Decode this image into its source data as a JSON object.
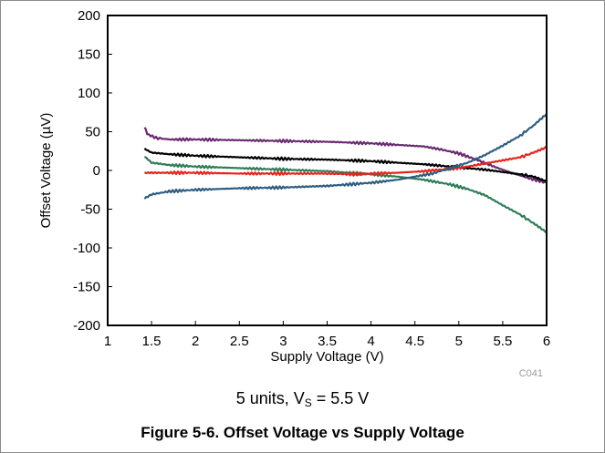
{
  "chart_data": {
    "type": "line",
    "title": "",
    "xlabel": "Supply Voltage (V)",
    "ylabel": "Offset Voltage (µV)",
    "xlim": [
      1,
      6
    ],
    "ylim": [
      -200,
      200
    ],
    "x_ticks": [
      "1",
      "1.5",
      "2",
      "2.5",
      "3",
      "3.5",
      "4",
      "4.5",
      "5",
      "5.5",
      "6"
    ],
    "y_ticks": [
      "-200",
      "-150",
      "-100",
      "-50",
      "0",
      "50",
      "100",
      "150",
      "200"
    ],
    "grid": false,
    "legend": "none",
    "code": "C041",
    "series": [
      {
        "color": "#6a2c70",
        "points": [
          [
            1.42,
            56
          ],
          [
            1.45,
            47
          ],
          [
            1.55,
            42
          ],
          [
            1.7,
            40
          ],
          [
            2.0,
            40
          ],
          [
            2.5,
            39
          ],
          [
            3.0,
            38
          ],
          [
            3.5,
            37
          ],
          [
            4.0,
            35
          ],
          [
            4.3,
            33
          ],
          [
            4.6,
            31
          ],
          [
            4.8,
            27
          ],
          [
            5.0,
            22
          ],
          [
            5.2,
            14
          ],
          [
            5.4,
            5
          ],
          [
            5.6,
            -3
          ],
          [
            5.8,
            -10
          ],
          [
            6.0,
            -16
          ]
        ]
      },
      {
        "color": "#000000",
        "points": [
          [
            1.42,
            28
          ],
          [
            1.5,
            23
          ],
          [
            1.7,
            21
          ],
          [
            2.0,
            19
          ],
          [
            2.5,
            17
          ],
          [
            3.0,
            15
          ],
          [
            3.5,
            14
          ],
          [
            4.0,
            12
          ],
          [
            4.3,
            10
          ],
          [
            4.6,
            8
          ],
          [
            4.9,
            5
          ],
          [
            5.1,
            3
          ],
          [
            5.3,
            1
          ],
          [
            5.5,
            -2
          ],
          [
            5.7,
            -5
          ],
          [
            5.85,
            -8
          ],
          [
            6.0,
            -14
          ]
        ]
      },
      {
        "color": "#2e7d57",
        "points": [
          [
            1.42,
            18
          ],
          [
            1.5,
            10
          ],
          [
            1.7,
            7
          ],
          [
            2.0,
            5
          ],
          [
            2.5,
            3
          ],
          [
            3.0,
            1
          ],
          [
            3.5,
            -1
          ],
          [
            4.0,
            -5
          ],
          [
            4.3,
            -8
          ],
          [
            4.6,
            -12
          ],
          [
            4.9,
            -18
          ],
          [
            5.1,
            -24
          ],
          [
            5.3,
            -32
          ],
          [
            5.5,
            -45
          ],
          [
            5.7,
            -57
          ],
          [
            5.85,
            -68
          ],
          [
            6.0,
            -80
          ]
        ]
      },
      {
        "color": "#e8221b",
        "points": [
          [
            1.42,
            -3
          ],
          [
            1.7,
            -3
          ],
          [
            2.0,
            -3
          ],
          [
            2.5,
            -4
          ],
          [
            3.0,
            -4
          ],
          [
            3.5,
            -4
          ],
          [
            3.8,
            -5
          ],
          [
            4.0,
            -4
          ],
          [
            4.3,
            -3
          ],
          [
            4.6,
            -1
          ],
          [
            4.9,
            2
          ],
          [
            5.1,
            5
          ],
          [
            5.3,
            9
          ],
          [
            5.5,
            13
          ],
          [
            5.7,
            17
          ],
          [
            5.85,
            23
          ],
          [
            6.0,
            30
          ]
        ]
      },
      {
        "color": "#2e5e80",
        "points": [
          [
            1.42,
            -36
          ],
          [
            1.5,
            -31
          ],
          [
            1.7,
            -27
          ],
          [
            2.0,
            -25
          ],
          [
            2.5,
            -23
          ],
          [
            3.0,
            -22
          ],
          [
            3.5,
            -20
          ],
          [
            4.0,
            -16
          ],
          [
            4.3,
            -12
          ],
          [
            4.5,
            -8
          ],
          [
            4.7,
            -4
          ],
          [
            4.9,
            3
          ],
          [
            5.1,
            10
          ],
          [
            5.3,
            20
          ],
          [
            5.5,
            32
          ],
          [
            5.7,
            45
          ],
          [
            5.85,
            58
          ],
          [
            6.0,
            73
          ]
        ]
      }
    ]
  },
  "subtitle": {
    "prefix": "5 units, V",
    "sub": "S",
    "suffix": " = 5.5 V"
  },
  "caption": "Figure 5-6. Offset Voltage vs Supply Voltage"
}
